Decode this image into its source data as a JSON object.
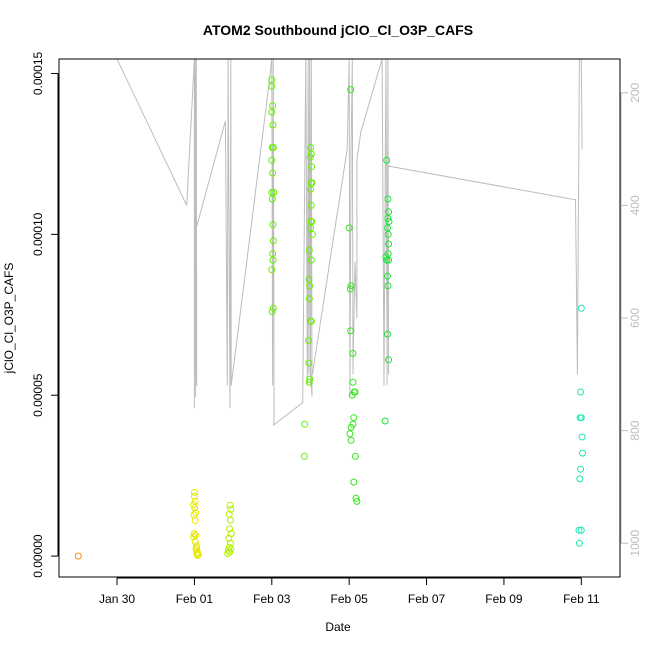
{
  "chart_data": {
    "type": "scatter",
    "title": "ATOM2 Southbound jClO_Cl_O3P_CAFS",
    "xlabel": "Date",
    "ylabel": "jClO_Cl_O3P_CAFS",
    "x_ticks": [
      "Jan 30",
      "Feb 01",
      "Feb 03",
      "Feb 05",
      "Feb 07",
      "Feb 09",
      "Feb 11"
    ],
    "x_tick_days": [
      30,
      32,
      34,
      36,
      38,
      40,
      42
    ],
    "xlim_days": [
      28.5,
      43.0
    ],
    "x_day_note": "",
    "y_ticks": [
      "0.00000",
      "0.00005",
      "0.00010",
      "0.00015"
    ],
    "y_tick_values": [
      0,
      5e-05,
      0.0001,
      0.00015
    ],
    "ylim": [
      -6.5e-06,
      0.0001545
    ],
    "y2_ticks": [
      "200",
      "400",
      "600",
      "800",
      "1000"
    ],
    "y2_tick_values": [
      200,
      400,
      600,
      800,
      1000
    ],
    "y2lim": [
      140,
      1060
    ],
    "y2_reversed": true,
    "colors": {
      "orange": "#ff8c1a",
      "yellow": "#e6e600",
      "yellow_green": "#b3f000",
      "green": "#66f000",
      "bright_green": "#33e61a",
      "green2": "#1ae633",
      "aqua": "#1ae6b3",
      "track": "#bdbdbd"
    },
    "series": [
      {
        "color_key": "orange",
        "points": [
          [
            29.0,
            0.0
          ]
        ]
      },
      {
        "color_key": "yellow",
        "points": [
          [
            32.0,
            1.98e-05
          ],
          [
            32.0,
            1.86e-05
          ],
          [
            32.02,
            1.7e-05
          ],
          [
            31.98,
            1.6e-05
          ],
          [
            32.01,
            1.5e-05
          ],
          [
            32.03,
            1.35e-05
          ],
          [
            31.99,
            1.28e-05
          ],
          [
            32.02,
            1.1e-05
          ],
          [
            32.0,
            7e-06
          ],
          [
            32.03,
            6.5e-06
          ],
          [
            31.98,
            6e-06
          ],
          [
            32.02,
            4.5e-06
          ],
          [
            32.05,
            3.2e-06
          ],
          [
            32.06,
            2.5e-06
          ],
          [
            32.08,
            1.2e-06
          ],
          [
            32.1,
            5e-07
          ],
          [
            32.08,
            2e-07
          ],
          [
            32.04,
            2e-06
          ],
          [
            32.07,
            8e-07
          ]
        ]
      },
      {
        "color_key": "yellow_green",
        "points": [
          [
            32.92,
            1.58e-05
          ],
          [
            32.94,
            1.45e-05
          ],
          [
            32.9,
            1.3e-05
          ],
          [
            32.93,
            1.12e-05
          ],
          [
            32.91,
            8.5e-06
          ],
          [
            32.95,
            7e-06
          ],
          [
            32.89,
            5.5e-06
          ],
          [
            32.93,
            4e-06
          ],
          [
            32.9,
            2.8e-06
          ],
          [
            32.88,
            1.8e-06
          ],
          [
            32.91,
            1.2e-06
          ],
          [
            32.86,
            8e-07
          ],
          [
            32.94,
            2.2e-06
          ]
        ]
      },
      {
        "color_key": "green",
        "points": [
          [
            34.0,
            0.000148
          ],
          [
            34.0,
            0.000146
          ],
          [
            34.02,
            0.00014
          ],
          [
            34.0,
            0.000138
          ],
          [
            34.03,
            0.000134
          ],
          [
            34.01,
            0.000127
          ],
          [
            34.04,
            0.000127
          ],
          [
            34.0,
            0.000123
          ],
          [
            34.02,
            0.000119
          ],
          [
            34.0,
            0.000113
          ],
          [
            34.05,
            0.000113
          ],
          [
            34.01,
            0.000111
          ],
          [
            34.03,
            0.000103
          ],
          [
            34.04,
            9.8e-05
          ],
          [
            34.02,
            9.4e-05
          ],
          [
            34.03,
            9.2e-05
          ],
          [
            34.0,
            8.9e-05
          ],
          [
            34.04,
            7.7e-05
          ],
          [
            34.01,
            7.6e-05
          ],
          [
            34.85,
            4.1e-05
          ],
          [
            34.84,
            3.1e-05
          ],
          [
            35.0,
            0.000127
          ],
          [
            35.02,
            0.000125
          ],
          [
            35.0,
            0.000124
          ],
          [
            35.03,
            0.000121
          ],
          [
            35.01,
            0.000116
          ],
          [
            35.04,
            0.000116
          ],
          [
            35.0,
            0.000114
          ],
          [
            35.02,
            0.000109
          ],
          [
            35.01,
            0.000104
          ],
          [
            35.03,
            0.000104
          ],
          [
            35.0,
            0.000102
          ],
          [
            35.05,
            0.0001
          ],
          [
            34.97,
            9.5e-05
          ],
          [
            35.02,
            9.2e-05
          ],
          [
            34.96,
            8.6e-05
          ],
          [
            34.98,
            8.4e-05
          ],
          [
            34.97,
            8e-05
          ],
          [
            35.0,
            7.3e-05
          ],
          [
            35.02,
            7.3e-05
          ],
          [
            34.95,
            6.7e-05
          ],
          [
            34.96,
            6e-05
          ],
          [
            34.98,
            5.5e-05
          ],
          [
            34.97,
            5.4e-05
          ]
        ]
      },
      {
        "color_key": "bright_green",
        "points": [
          [
            36.04,
            0.000145
          ],
          [
            36.0,
            0.000102
          ],
          [
            36.05,
            8.4e-05
          ],
          [
            36.03,
            8.3e-05
          ],
          [
            36.04,
            7e-05
          ],
          [
            36.1,
            6.3e-05
          ],
          [
            36.1,
            5.4e-05
          ],
          [
            36.13,
            5.1e-05
          ],
          [
            36.15,
            5.1e-05
          ],
          [
            36.08,
            5e-05
          ],
          [
            36.12,
            4.3e-05
          ],
          [
            36.1,
            4.1e-05
          ],
          [
            36.05,
            4e-05
          ],
          [
            36.02,
            3.8e-05
          ],
          [
            36.05,
            3.6e-05
          ],
          [
            36.16,
            3.1e-05
          ],
          [
            36.12,
            2.3e-05
          ],
          [
            36.18,
            1.8e-05
          ],
          [
            36.2,
            1.7e-05
          ]
        ]
      },
      {
        "color_key": "green2",
        "points": [
          [
            36.97,
            0.000123
          ],
          [
            37.0,
            0.000111
          ],
          [
            37.02,
            0.000107
          ],
          [
            37.0,
            0.000105
          ],
          [
            37.03,
            0.000104
          ],
          [
            36.99,
            0.000102
          ],
          [
            37.01,
            0.0001
          ],
          [
            37.02,
            9.7e-05
          ],
          [
            37.01,
            9.4e-05
          ],
          [
            36.95,
            9.3e-05
          ],
          [
            36.97,
            9.2e-05
          ],
          [
            37.02,
            9.2e-05
          ],
          [
            36.99,
            8.7e-05
          ],
          [
            37.0,
            8.4e-05
          ],
          [
            36.99,
            6.9e-05
          ],
          [
            37.02,
            6.1e-05
          ],
          [
            36.93,
            4.2e-05
          ]
        ]
      },
      {
        "color_key": "aqua",
        "points": [
          [
            42.0,
            7.7e-05
          ],
          [
            41.98,
            5.1e-05
          ],
          [
            41.97,
            4.3e-05
          ],
          [
            42.0,
            4.3e-05
          ],
          [
            42.02,
            3.7e-05
          ],
          [
            42.03,
            3.2e-05
          ],
          [
            41.98,
            2.7e-05
          ],
          [
            41.96,
            2.4e-05
          ],
          [
            42.0,
            8e-06
          ],
          [
            41.94,
            8e-06
          ],
          [
            41.95,
            4e-06
          ]
        ]
      }
    ],
    "track_pressure": [
      [
        30.0,
        140
      ],
      [
        31.8,
        400
      ],
      [
        32.0,
        140
      ],
      [
        32.0,
        760
      ],
      [
        32.02,
        140
      ],
      [
        32.03,
        740
      ],
      [
        32.05,
        140
      ],
      [
        32.06,
        720
      ],
      [
        32.05,
        440
      ],
      [
        32.8,
        250
      ],
      [
        32.85,
        720
      ],
      [
        32.87,
        140
      ],
      [
        32.92,
        760
      ],
      [
        32.94,
        140
      ],
      [
        32.95,
        720
      ],
      [
        33.9,
        200
      ],
      [
        34.0,
        140
      ],
      [
        34.02,
        720
      ],
      [
        34.04,
        140
      ],
      [
        34.06,
        780
      ],
      [
        34.05,
        790
      ],
      [
        34.8,
        750
      ],
      [
        34.88,
        140
      ],
      [
        34.92,
        720
      ],
      [
        34.94,
        140
      ],
      [
        34.96,
        700
      ],
      [
        34.98,
        140
      ],
      [
        35.0,
        720
      ],
      [
        35.02,
        140
      ],
      [
        35.04,
        740
      ],
      [
        35.0,
        700
      ],
      [
        35.05,
        700
      ],
      [
        35.95,
        300
      ],
      [
        36.0,
        140
      ],
      [
        36.02,
        740
      ],
      [
        36.05,
        300
      ],
      [
        36.08,
        140
      ],
      [
        36.1,
        700
      ],
      [
        36.15,
        500
      ],
      [
        36.2,
        600
      ],
      [
        36.2,
        320
      ],
      [
        36.3,
        270
      ],
      [
        36.85,
        140
      ],
      [
        36.9,
        720
      ],
      [
        36.95,
        140
      ],
      [
        36.98,
        720
      ],
      [
        37.0,
        140
      ],
      [
        37.02,
        700
      ],
      [
        37.0,
        330
      ],
      [
        41.85,
        390
      ],
      [
        41.9,
        700
      ],
      [
        41.95,
        140
      ],
      [
        42.0,
        140
      ],
      [
        42.02,
        300
      ]
    ]
  }
}
